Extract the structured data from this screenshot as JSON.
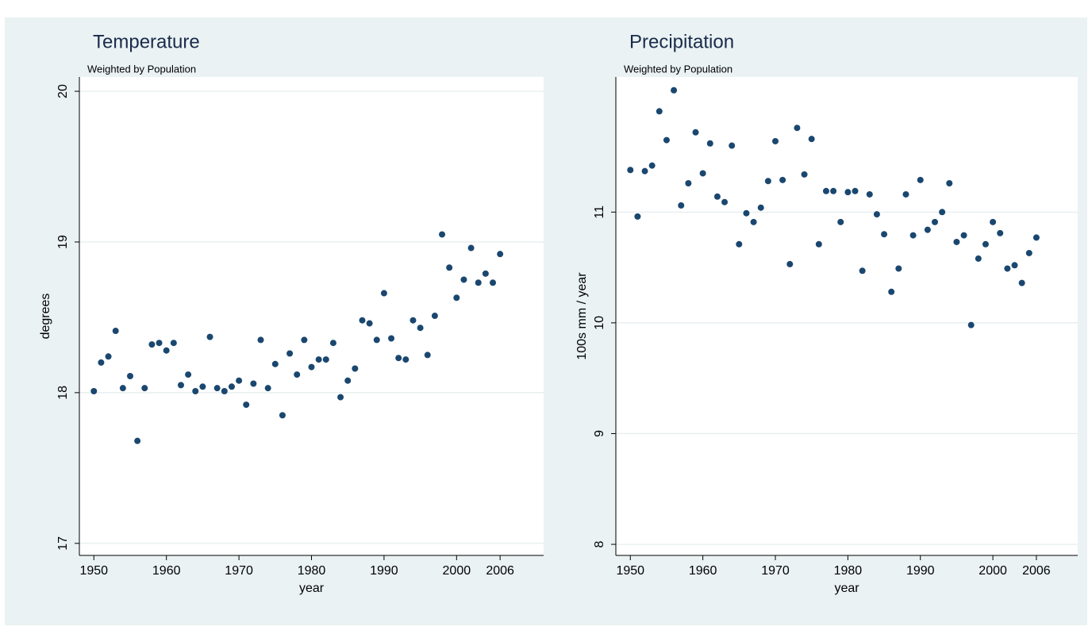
{
  "chart_data": [
    {
      "type": "scatter",
      "title": "Temperature",
      "subtitle": "Weighted by Population",
      "x_label": "year",
      "y_label": "degrees",
      "color": "#1a476f",
      "grid": true,
      "x": [
        1950,
        1951,
        1952,
        1953,
        1954,
        1955,
        1956,
        1957,
        1958,
        1959,
        1960,
        1961,
        1962,
        1963,
        1964,
        1965,
        1966,
        1967,
        1968,
        1969,
        1970,
        1971,
        1972,
        1973,
        1974,
        1975,
        1976,
        1977,
        1978,
        1979,
        1980,
        1981,
        1982,
        1983,
        1984,
        1985,
        1986,
        1987,
        1988,
        1989,
        1990,
        1991,
        1992,
        1993,
        1994,
        1995,
        1996,
        1997,
        1998,
        1999,
        2000,
        2001,
        2002,
        2003,
        2004,
        2005,
        2006
      ],
      "values": [
        18.01,
        18.2,
        18.24,
        18.41,
        18.03,
        18.11,
        17.68,
        18.03,
        18.32,
        18.33,
        18.28,
        18.33,
        18.05,
        18.12,
        18.01,
        18.04,
        18.37,
        18.03,
        18.01,
        18.04,
        18.08,
        17.92,
        18.06,
        18.35,
        18.03,
        18.19,
        17.85,
        18.26,
        18.12,
        18.35,
        18.17,
        18.22,
        18.22,
        18.33,
        17.97,
        18.08,
        18.16,
        18.48,
        18.46,
        18.35,
        18.66,
        18.36,
        18.23,
        18.22,
        18.48,
        18.43,
        18.25,
        18.51,
        19.05,
        18.83,
        18.63,
        18.75,
        18.96,
        18.73,
        18.79,
        18.73,
        18.92
      ],
      "xlim": [
        1948,
        2012
      ],
      "xticks": [
        1950,
        1960,
        1970,
        1980,
        1990,
        2000,
        2006
      ],
      "ylim": [
        16.92,
        20.095
      ],
      "yticks": [
        17,
        18,
        19,
        20
      ]
    },
    {
      "type": "scatter",
      "title": "Precipitation",
      "subtitle": "Weighted by Population",
      "x_label": "year",
      "y_label": "100s mm / year",
      "color": "#1a476f",
      "grid": true,
      "x": [
        1950,
        1951,
        1952,
        1953,
        1954,
        1955,
        1956,
        1957,
        1958,
        1959,
        1960,
        1961,
        1962,
        1963,
        1964,
        1965,
        1966,
        1967,
        1968,
        1969,
        1970,
        1971,
        1972,
        1973,
        1974,
        1975,
        1976,
        1977,
        1978,
        1979,
        1980,
        1981,
        1982,
        1983,
        1984,
        1985,
        1986,
        1987,
        1988,
        1989,
        1990,
        1991,
        1992,
        1993,
        1994,
        1995,
        1996,
        1997,
        1998,
        1999,
        2000,
        2001,
        2002,
        2003,
        2004,
        2005,
        2006
      ],
      "values": [
        11.38,
        10.96,
        11.37,
        11.42,
        11.91,
        11.65,
        12.1,
        11.06,
        11.26,
        11.72,
        11.35,
        11.62,
        11.14,
        11.09,
        11.6,
        10.71,
        10.99,
        10.91,
        11.04,
        11.28,
        11.64,
        11.29,
        10.53,
        11.76,
        11.34,
        11.66,
        10.71,
        11.19,
        11.19,
        10.91,
        11.18,
        11.19,
        10.47,
        11.16,
        10.98,
        10.8,
        10.28,
        10.49,
        11.16,
        10.79,
        11.29,
        10.84,
        10.91,
        11,
        11.26,
        10.73,
        10.79,
        9.98,
        10.58,
        10.71,
        10.91,
        10.81,
        10.49,
        10.52,
        10.36,
        10.63,
        10.77
      ],
      "xlim": [
        1948,
        2011.7
      ],
      "xticks": [
        1950,
        1960,
        1970,
        1980,
        1990,
        2000,
        2006
      ],
      "ylim": [
        7.9,
        12.22
      ],
      "yticks": [
        8,
        9,
        10,
        11
      ]
    }
  ]
}
